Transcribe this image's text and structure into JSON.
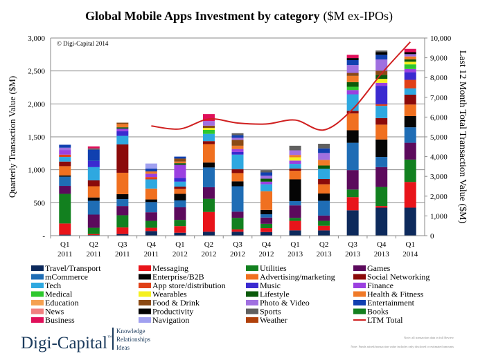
{
  "chart_data": {
    "type": "bar",
    "stacked": true,
    "title": "Global Mobile Apps Investment by category",
    "title_suffix": "($M ex-IPOs)",
    "copyright": "© Digi-Capital 2014",
    "ylabel": "Quarterly Transaction Value ($M)",
    "ylabel_right": "Last 12 Month Total Transaction Value ($M)",
    "ylim": [
      0,
      3000
    ],
    "ylim_right": [
      0,
      10000
    ],
    "yticks": [
      "-",
      "500",
      "1,000",
      "1,500",
      "2,000",
      "2,500",
      "3,000"
    ],
    "yticks_right": [
      "0",
      "1,000",
      "2,000",
      "3,000",
      "4,000",
      "5,000",
      "6,000",
      "7,000",
      "8,000",
      "9,000",
      "10,000"
    ],
    "grid": true,
    "legend_position": "bottom",
    "categories": [
      {
        "q": "Q1",
        "year": "2011"
      },
      {
        "q": "Q2",
        "year": "2011"
      },
      {
        "q": "Q3",
        "year": "2011"
      },
      {
        "q": "Q4",
        "year": "2011"
      },
      {
        "q": "Q1",
        "year": "2012"
      },
      {
        "q": "Q2",
        "year": "2012"
      },
      {
        "q": "Q3",
        "year": "2012"
      },
      {
        "q": "Q4",
        "year": "2012"
      },
      {
        "q": "Q1",
        "year": "2013"
      },
      {
        "q": "Q2",
        "year": "2013"
      },
      {
        "q": "Q3",
        "year": "2013"
      },
      {
        "q": "Q4",
        "year": "2013"
      },
      {
        "q": "Q1",
        "year": "2014"
      }
    ],
    "series": [
      {
        "name": "Travel/Transport",
        "color": "#0d2a5c",
        "values": [
          15,
          10,
          25,
          70,
          45,
          60,
          60,
          55,
          80,
          80,
          385,
          425,
          425
        ]
      },
      {
        "name": "Messaging",
        "color": "#e8141a",
        "values": [
          170,
          15,
          100,
          50,
          100,
          300,
          35,
          60,
          145,
          70,
          200,
          25,
          390
        ]
      },
      {
        "name": "Utilities",
        "color": "#12801f",
        "values": [
          450,
          95,
          185,
          105,
          95,
          200,
          175,
          65,
          45,
          75,
          115,
          290,
          340
        ]
      },
      {
        "name": "Games",
        "color": "#5c0a5c",
        "values": [
          120,
          200,
          140,
          130,
          190,
          175,
          95,
          95,
          190,
          80,
          295,
          300,
          255
        ]
      },
      {
        "name": "mCommerce",
        "color": "#1f6db5",
        "values": [
          140,
          210,
          105,
          155,
          105,
          300,
          385,
          50,
          65,
          225,
          415,
          155,
          235
        ]
      },
      {
        "name": "Enterprise/B2B",
        "color": "#050505",
        "values": [
          20,
          50,
          75,
          40,
          100,
          75,
          75,
          65,
          330,
          110,
          190,
          265,
          170
        ]
      },
      {
        "name": "Advertising/marketing",
        "color": "#f07020",
        "values": [
          140,
          170,
          325,
          165,
          75,
          280,
          125,
          285,
          130,
          140,
          255,
          225,
          175
        ]
      },
      {
        "name": "Social Networking",
        "color": "#8b0a0a",
        "values": [
          70,
          90,
          430,
          0,
          35,
          45,
          60,
          0,
          35,
          80,
          40,
          100,
          150
        ]
      },
      {
        "name": "Tech",
        "color": "#2ea8e0",
        "values": [
          70,
          200,
          130,
          140,
          75,
          110,
          220,
          105,
          70,
          155,
          250,
          185,
          95
        ]
      },
      {
        "name": "App store/distribution",
        "color": "#e04018",
        "values": [
          35,
          0,
          0,
          35,
          0,
          0,
          0,
          0,
          0,
          0,
          0,
          25,
          130
        ]
      },
      {
        "name": "Music",
        "color": "#3a2ad0",
        "values": [
          0,
          95,
          70,
          0,
          55,
          0,
          40,
          0,
          0,
          0,
          0,
          280,
          115
        ]
      },
      {
        "name": "Finance",
        "color": "#9b40e0",
        "values": [
          70,
          0,
          40,
          50,
          200,
          0,
          45,
          40,
          50,
          0,
          65,
          45,
          50
        ]
      },
      {
        "name": "Medical",
        "color": "#2ec82e",
        "values": [
          0,
          0,
          0,
          0,
          0,
          60,
          0,
          0,
          0,
          0,
          50,
          0,
          70
        ]
      },
      {
        "name": "Wearables",
        "color": "#f5f020",
        "values": [
          0,
          0,
          0,
          0,
          0,
          30,
          0,
          0,
          50,
          0,
          0,
          60,
          40
        ]
      },
      {
        "name": "Lifestyle",
        "color": "#0a5a0a",
        "values": [
          0,
          0,
          20,
          0,
          25,
          0,
          0,
          45,
          0,
          50,
          70,
          60,
          35
        ]
      },
      {
        "name": "Health & Fitness",
        "color": "#f07a28",
        "values": [
          0,
          0,
          50,
          35,
          25,
          0,
          50,
          0,
          35,
          85,
          95,
          0,
          45
        ]
      },
      {
        "name": "Education",
        "color": "#f5a050",
        "values": [
          0,
          0,
          0,
          0,
          0,
          0,
          0,
          0,
          0,
          0,
          0,
          0,
          0
        ]
      },
      {
        "name": "Food & Drink",
        "color": "#8b4a14",
        "values": [
          0,
          0,
          20,
          0,
          45,
          35,
          90,
          0,
          0,
          0,
          45,
          65,
          0
        ]
      },
      {
        "name": "Photo & Video",
        "color": "#a070e0",
        "values": [
          35,
          0,
          0,
          0,
          0,
          70,
          30,
          45,
          70,
          105,
          120,
          170,
          35
        ]
      },
      {
        "name": "Entertainment",
        "color": "#1040b0",
        "values": [
          45,
          170,
          0,
          45,
          30,
          0,
          40,
          50,
          0,
          70,
          75,
          70,
          0
        ]
      },
      {
        "name": "News",
        "color": "#f08080",
        "values": [
          0,
          0,
          0,
          0,
          0,
          0,
          0,
          0,
          0,
          0,
          0,
          0,
          0
        ]
      },
      {
        "name": "Productivity",
        "color": "#000000",
        "values": [
          0,
          0,
          0,
          0,
          0,
          0,
          0,
          0,
          0,
          0,
          30,
          40,
          30
        ]
      },
      {
        "name": "Sports",
        "color": "#606060",
        "values": [
          0,
          20,
          0,
          0,
          0,
          0,
          30,
          35,
          70,
          70,
          0,
          25,
          0
        ]
      },
      {
        "name": "Books",
        "color": "#148020",
        "values": [
          0,
          0,
          0,
          0,
          0,
          0,
          0,
          0,
          0,
          0,
          0,
          0,
          0
        ]
      },
      {
        "name": "Business",
        "color": "#e0105a",
        "values": [
          0,
          30,
          0,
          0,
          0,
          105,
          0,
          0,
          0,
          0,
          50,
          0,
          50
        ]
      },
      {
        "name": "Navigation",
        "color": "#a0a0f0",
        "values": [
          0,
          0,
          0,
          75,
          0,
          0,
          0,
          0,
          0,
          0,
          0,
          0,
          0
        ]
      },
      {
        "name": "Weather",
        "color": "#b0400a",
        "values": [
          0,
          0,
          0,
          0,
          0,
          0,
          0,
          0,
          0,
          0,
          0,
          0,
          0
        ]
      }
    ],
    "line": {
      "name": "LTM Total",
      "color": "#d02020",
      "axis": "right",
      "values": [
        null,
        null,
        null,
        5550,
        5400,
        5900,
        5700,
        5650,
        5850,
        5350,
        6400,
        8200,
        9800
      ]
    },
    "legend_order": [
      "Travel/Transport",
      "Messaging",
      "Utilities",
      "Games",
      "mCommerce",
      "Enterprise/B2B",
      "Advertising/marketing",
      "Social Networking",
      "Tech",
      "App store/distribution",
      "Music",
      "Finance",
      "Medical",
      "Wearables",
      "Lifestyle",
      "Health & Fitness",
      "Education",
      "Food & Drink",
      "Photo & Video",
      "Entertainment",
      "News",
      "Productivity",
      "Sports",
      "Books",
      "Business",
      "Navigation",
      "Weather",
      "LTM Total"
    ]
  },
  "footer": {
    "logo": "Digi-Capital",
    "tm": "™",
    "tagline": [
      "Knowledge",
      "Relationships",
      "Ideas"
    ],
    "brand_color": "#1a3a5c",
    "notes": [
      "Note: all transaction data in full Review",
      "Note: Funds raised/transaction value includes only disclosed or estimated amounts"
    ]
  }
}
